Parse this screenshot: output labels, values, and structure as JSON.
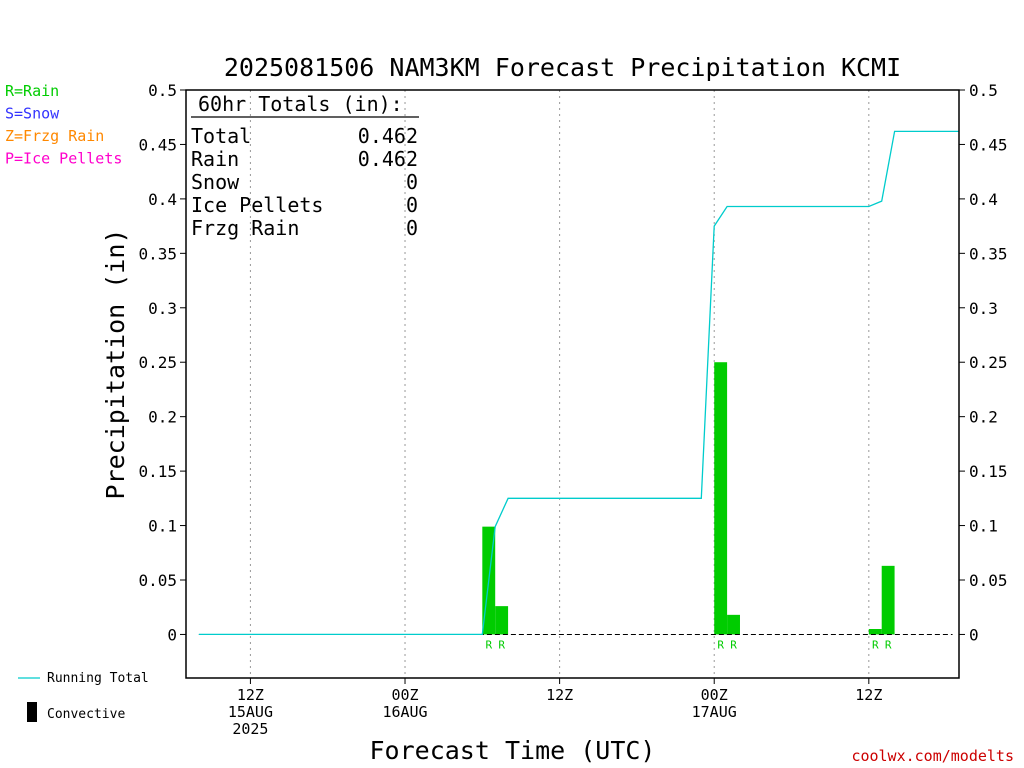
{
  "chart_data": {
    "type": "bar",
    "title": "2025081506 NAM3KM Forecast Precipitation KCMI",
    "xlabel": "Forecast Time (UTC)",
    "ylabel": "Precipitation (in)",
    "ylim": [
      -0.04,
      0.5
    ],
    "y_ticks": [
      0,
      0.05,
      0.1,
      0.15,
      0.2,
      0.25,
      0.3,
      0.35,
      0.4,
      0.45,
      0.5
    ],
    "y_tick_labels": [
      "0",
      "0.05",
      "0.1",
      "0.15",
      "0.2",
      "0.25",
      "0.3",
      "0.35",
      "0.4",
      "0.45",
      "0.5"
    ],
    "x_axis_hours_range": [
      7,
      67
    ],
    "x_ticks": [
      {
        "hour": 12,
        "lines": [
          "12Z",
          "15AUG",
          "2025"
        ]
      },
      {
        "hour": 24,
        "lines": [
          "00Z",
          "16AUG"
        ]
      },
      {
        "hour": 36,
        "lines": [
          "12Z"
        ]
      },
      {
        "hour": 48,
        "lines": [
          "00Z",
          "17AUG"
        ]
      },
      {
        "hour": 60,
        "lines": [
          "12Z"
        ]
      }
    ],
    "grid": "vertical dotted at tick times",
    "legend": {
      "position": "top-left",
      "items": [
        {
          "text": "R=Rain",
          "color": "#00cc00"
        },
        {
          "text": "S=Snow",
          "color": "#3333ff"
        },
        {
          "text": "Z=Frzg Rain",
          "color": "#ff8800"
        },
        {
          "text": "P=Ice Pellets",
          "color": "#ff00cc"
        }
      ]
    },
    "bottom_legend": {
      "running_total": "Running Total",
      "convective": "Convective"
    },
    "totals_box": {
      "header": "60hr Totals (in):",
      "rows": [
        {
          "label": "Total",
          "value": "0.462"
        },
        {
          "label": "Rain",
          "value": "0.462"
        },
        {
          "label": "Snow",
          "value": "0"
        },
        {
          "label": "Ice Pellets",
          "value": "0"
        },
        {
          "label": "Frzg Rain",
          "value": "0"
        }
      ]
    },
    "series": [
      {
        "name": "Rain",
        "color": "#00cc00",
        "bars": [
          {
            "hour": 30.5,
            "value": 0.099,
            "type": "R"
          },
          {
            "hour": 31.5,
            "value": 0.026,
            "type": "R"
          },
          {
            "hour": 48.5,
            "value": 0.25,
            "type": "R"
          },
          {
            "hour": 49.5,
            "value": 0.018,
            "type": "R"
          },
          {
            "hour": 60.5,
            "value": 0.005,
            "type": "R"
          },
          {
            "hour": 61.5,
            "value": 0.063,
            "type": "R"
          }
        ]
      },
      {
        "name": "Running Total",
        "color": "#00cccc",
        "points": [
          [
            8,
            0
          ],
          [
            30,
            0
          ],
          [
            31,
            0.099
          ],
          [
            32,
            0.125
          ],
          [
            47,
            0.125
          ],
          [
            48,
            0.375
          ],
          [
            49,
            0.393
          ],
          [
            60,
            0.393
          ],
          [
            61,
            0.398
          ],
          [
            62,
            0.462
          ],
          [
            67,
            0.462
          ]
        ]
      }
    ],
    "colors": {
      "rain": "#00cc00",
      "running_total": "#00cccc",
      "axis": "#000000",
      "grid": "#999999",
      "credit": "#cc0000"
    },
    "credit": "coolwx.com/modelts"
  }
}
